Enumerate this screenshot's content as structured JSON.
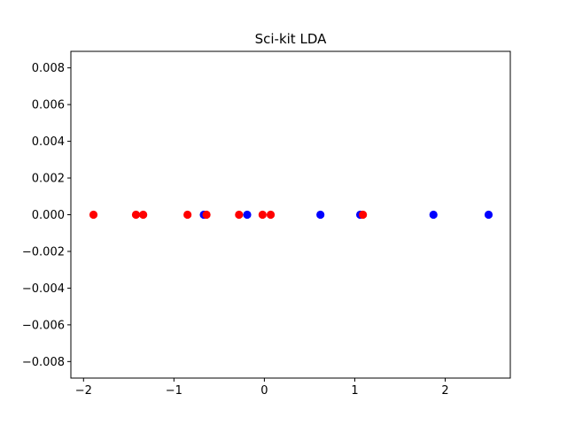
{
  "chart_data": {
    "type": "scatter",
    "title": "Sci-kit LDA",
    "xlabel": "",
    "ylabel": "",
    "xlim": [
      -2.14,
      2.72
    ],
    "ylim": [
      -0.0089,
      0.0089
    ],
    "x_ticks": [
      -2,
      -1,
      0,
      1,
      2
    ],
    "x_tick_labels": [
      "−2",
      "−1",
      "0",
      "1",
      "2"
    ],
    "y_ticks": [
      -0.008,
      -0.006,
      -0.004,
      -0.002,
      0.0,
      0.002,
      0.004,
      0.006,
      0.008
    ],
    "y_tick_labels": [
      "−0.008",
      "−0.006",
      "−0.004",
      "−0.002",
      "0.000",
      "0.002",
      "0.004",
      "0.006",
      "0.008"
    ],
    "grid": false,
    "legend": "none",
    "series": [
      {
        "color": "#0000ff",
        "points": [
          {
            "x": -0.67,
            "y": 0
          },
          {
            "x": -0.19,
            "y": 0
          },
          {
            "x": 0.62,
            "y": 0
          },
          {
            "x": 1.06,
            "y": 0
          },
          {
            "x": 1.87,
            "y": 0
          },
          {
            "x": 2.48,
            "y": 0
          }
        ]
      },
      {
        "color": "#ff0000",
        "points": [
          {
            "x": -1.89,
            "y": 0
          },
          {
            "x": -1.42,
            "y": 0
          },
          {
            "x": -1.34,
            "y": 0
          },
          {
            "x": -0.85,
            "y": 0
          },
          {
            "x": -0.64,
            "y": 0
          },
          {
            "x": -0.28,
            "y": 0
          },
          {
            "x": -0.02,
            "y": 0
          },
          {
            "x": 0.07,
            "y": 0
          },
          {
            "x": 1.09,
            "y": 0
          }
        ]
      }
    ]
  }
}
